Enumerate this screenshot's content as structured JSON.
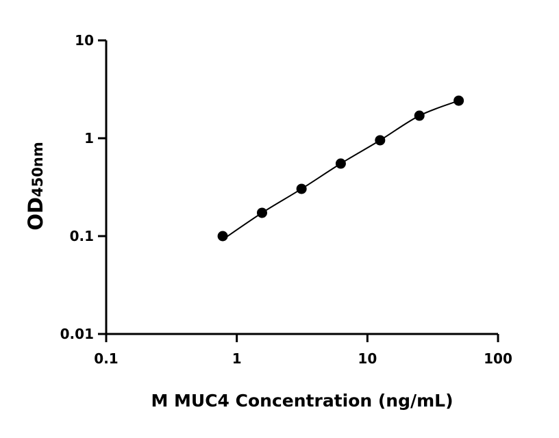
{
  "chart_data": {
    "type": "scatter",
    "title": "",
    "xlabel": "M MUC4 Concentration (ng/mL)",
    "ylabel": "OD",
    "ylabel_subscript": "450nm",
    "xscale": "log",
    "yscale": "log",
    "xlim": [
      0.1,
      100
    ],
    "ylim": [
      0.01,
      10
    ],
    "xticks": [
      "0.1",
      "1",
      "10",
      "100"
    ],
    "yticks": [
      "0.01",
      "0.1",
      "1",
      "10"
    ],
    "grid": false,
    "fit_curve": true,
    "colors": {
      "points": "#000000",
      "curve": "#000000"
    },
    "x": [
      0.78,
      1.56,
      3.13,
      6.25,
      12.5,
      25,
      50
    ],
    "y": [
      0.1,
      0.173,
      0.304,
      0.551,
      0.953,
      1.7,
      2.42
    ]
  }
}
